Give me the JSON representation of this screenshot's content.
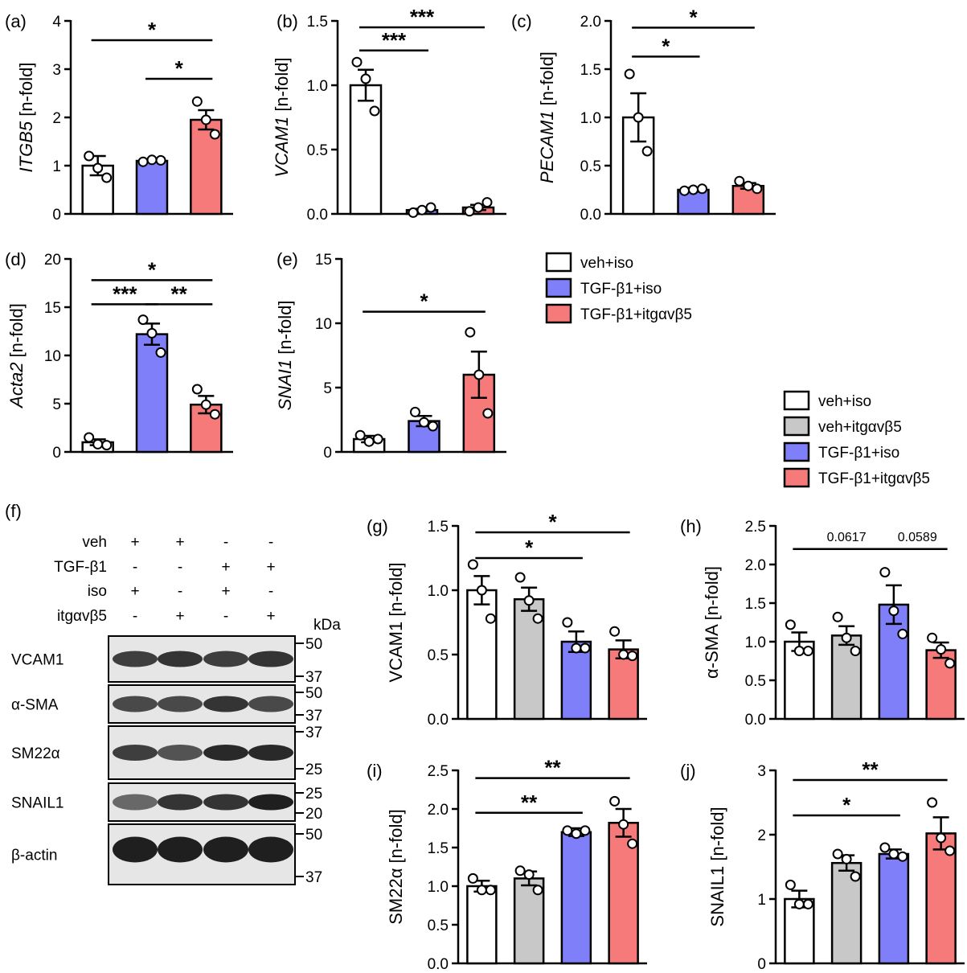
{
  "colors": {
    "veh_iso": "#ffffff",
    "veh_itg": "#c8c8c8",
    "tgf_iso": "#7f7ff9",
    "tgf_itg": "#f77a7a"
  },
  "legend_top": {
    "entries": [
      {
        "label": "veh+iso",
        "color": "#ffffff"
      },
      {
        "label": "TGF-β1+iso",
        "color": "#7f7ff9"
      },
      {
        "label": "TGF-β1+itgαvβ5",
        "color": "#f77a7a"
      }
    ]
  },
  "legend_bottom": {
    "entries": [
      {
        "label": "veh+iso",
        "color": "#ffffff"
      },
      {
        "label": "veh+itgαvβ5",
        "color": "#c8c8c8"
      },
      {
        "label": "TGF-β1+iso",
        "color": "#7f7ff9"
      },
      {
        "label": "TGF-β1+itgαvβ5",
        "color": "#f77a7a"
      }
    ]
  },
  "blot": {
    "panel_label": "(f)",
    "treatments": [
      {
        "name": "veh",
        "marks": [
          "+",
          "+",
          "-",
          "-"
        ]
      },
      {
        "name": "TGF-β1",
        "marks": [
          "-",
          "-",
          "+",
          "+"
        ]
      },
      {
        "name": "iso",
        "marks": [
          "+",
          "-",
          "+",
          "-"
        ]
      },
      {
        "name": "itgαvβ5",
        "marks": [
          "-",
          "+",
          "-",
          "+"
        ]
      }
    ],
    "kda_label": "kDa",
    "proteins": [
      {
        "name": "VCAM1",
        "markers": [
          "50",
          "37"
        ]
      },
      {
        "name": "α-SMA",
        "markers": [
          "50",
          "37"
        ]
      },
      {
        "name": "SM22α",
        "markers": [
          "37",
          "25"
        ]
      },
      {
        "name": "SNAIL1",
        "markers": [
          "25",
          "20"
        ]
      },
      {
        "name": "β-actin",
        "markers": [
          "50",
          "37"
        ]
      }
    ],
    "band_intensity": [
      [
        0.8,
        0.85,
        0.8,
        0.85
      ],
      [
        0.75,
        0.75,
        0.85,
        0.75
      ],
      [
        0.8,
        0.7,
        0.9,
        0.9
      ],
      [
        0.6,
        0.85,
        0.85,
        0.95
      ],
      [
        0.95,
        0.95,
        0.95,
        0.95
      ]
    ]
  },
  "chart_data": [
    {
      "panel": "(a)",
      "type": "bar",
      "ylabel": "ITGB5 [n-fold]",
      "ylabel_italic_part": "ITGB5",
      "ylim": [
        0,
        4
      ],
      "yticks": [
        "0",
        "1",
        "2",
        "3",
        "4"
      ],
      "series": [
        {
          "name": "veh+iso",
          "value": 1.0,
          "sem": 0.2,
          "points": [
            1.2,
            0.95,
            0.75
          ]
        },
        {
          "name": "TGF-β1+iso",
          "value": 1.1,
          "sem": 0.03,
          "points": [
            1.08,
            1.12,
            1.11
          ]
        },
        {
          "name": "TGF-β1+itgαvβ5",
          "value": 1.95,
          "sem": 0.2,
          "points": [
            2.33,
            1.95,
            1.65
          ]
        }
      ],
      "significance": [
        {
          "from": 0,
          "to": 2,
          "y": 3.6,
          "label": "*"
        },
        {
          "from": 1,
          "to": 2,
          "y": 2.8,
          "label": "*"
        }
      ]
    },
    {
      "panel": "(b)",
      "type": "bar",
      "ylabel": "VCAM1 [n-fold]",
      "ylabel_italic_part": "VCAM1",
      "ylim": [
        0,
        1.5
      ],
      "yticks": [
        "0.0",
        "0.5",
        "1.0",
        "1.5"
      ],
      "series": [
        {
          "name": "veh+iso",
          "value": 1.0,
          "sem": 0.12,
          "points": [
            1.18,
            1.05,
            0.8
          ]
        },
        {
          "name": "TGF-β1+iso",
          "value": 0.03,
          "sem": 0.01,
          "points": [
            0.01,
            0.03,
            0.05
          ]
        },
        {
          "name": "TGF-β1+itgαvβ5",
          "value": 0.05,
          "sem": 0.02,
          "points": [
            0.02,
            0.05,
            0.09
          ]
        }
      ],
      "significance": [
        {
          "from": 0,
          "to": 2,
          "y": 1.45,
          "label": "***"
        },
        {
          "from": 0,
          "to": 1,
          "y": 1.27,
          "label": "***"
        }
      ]
    },
    {
      "panel": "(c)",
      "type": "bar",
      "ylabel": "PECAM1 [n-fold]",
      "ylabel_italic_part": "PECAM1",
      "ylim": [
        0,
        2.0
      ],
      "yticks": [
        "0.0",
        "0.5",
        "1.0",
        "1.5",
        "2.0"
      ],
      "series": [
        {
          "name": "veh+iso",
          "value": 1.0,
          "sem": 0.25,
          "points": [
            1.45,
            1.0,
            0.65
          ]
        },
        {
          "name": "TGF-β1+iso",
          "value": 0.25,
          "sem": 0.02,
          "points": [
            0.24,
            0.25,
            0.26
          ]
        },
        {
          "name": "TGF-β1+itgαvβ5",
          "value": 0.29,
          "sem": 0.03,
          "points": [
            0.34,
            0.29,
            0.26
          ]
        }
      ],
      "significance": [
        {
          "from": 0,
          "to": 2,
          "y": 1.93,
          "label": "*"
        },
        {
          "from": 0,
          "to": 1,
          "y": 1.63,
          "label": "*"
        }
      ]
    },
    {
      "panel": "(d)",
      "type": "bar",
      "ylabel": "Acta2 [n-fold]",
      "ylabel_italic_part": "Acta2",
      "ylim": [
        0,
        20
      ],
      "yticks": [
        "0",
        "5",
        "10",
        "15",
        "20"
      ],
      "series": [
        {
          "name": "veh+iso",
          "value": 1.0,
          "sem": 0.3,
          "points": [
            1.5,
            0.8,
            0.7
          ]
        },
        {
          "name": "TGF-β1+iso",
          "value": 12.2,
          "sem": 1.1,
          "points": [
            13.7,
            12.3,
            10.3
          ]
        },
        {
          "name": "TGF-β1+itgαvβ5",
          "value": 4.9,
          "sem": 0.9,
          "points": [
            6.5,
            4.9,
            3.9
          ]
        }
      ],
      "significance": [
        {
          "from": 0,
          "to": 2,
          "y": 17.8,
          "label": "*"
        },
        {
          "from": 0,
          "to": 1,
          "y": 15.3,
          "label": "***"
        },
        {
          "from": 1,
          "to": 2,
          "y": 15.3,
          "label": "**"
        }
      ]
    },
    {
      "panel": "(e)",
      "type": "bar",
      "ylabel": "SNAI1 [n-fold]",
      "ylabel_italic_part": "SNAI1",
      "ylim": [
        0,
        15
      ],
      "yticks": [
        "0",
        "5",
        "10",
        "15"
      ],
      "series": [
        {
          "name": "veh+iso",
          "value": 1.0,
          "sem": 0.25,
          "points": [
            1.3,
            0.8,
            1.0
          ]
        },
        {
          "name": "TGF-β1+iso",
          "value": 2.4,
          "sem": 0.4,
          "points": [
            3.1,
            2.3,
            2.0
          ]
        },
        {
          "name": "TGF-β1+itgαvβ5",
          "value": 6.0,
          "sem": 1.8,
          "points": [
            9.3,
            6.0,
            3.0
          ]
        }
      ],
      "significance": [
        {
          "from": 0,
          "to": 2,
          "y": 10.9,
          "label": "*"
        }
      ]
    },
    {
      "panel": "(g)",
      "type": "bar",
      "ylabel": "VCAM1 [n-fold]",
      "ylim": [
        0,
        1.5
      ],
      "yticks": [
        "0.0",
        "0.5",
        "1.0",
        "1.5"
      ],
      "series": [
        {
          "name": "veh+iso",
          "value": 1.0,
          "sem": 0.11,
          "points": [
            1.2,
            1.0,
            0.78
          ]
        },
        {
          "name": "veh+itgαvβ5",
          "value": 0.93,
          "sem": 0.09,
          "points": [
            1.1,
            0.92,
            0.78
          ]
        },
        {
          "name": "TGF-β1+iso",
          "value": 0.6,
          "sem": 0.08,
          "points": [
            0.75,
            0.55,
            0.55
          ]
        },
        {
          "name": "TGF-β1+itgαvβ5",
          "value": 0.54,
          "sem": 0.07,
          "points": [
            0.68,
            0.5,
            0.49
          ]
        }
      ],
      "significance": [
        {
          "from": 0,
          "to": 3,
          "y": 1.45,
          "label": "*"
        },
        {
          "from": 0,
          "to": 2,
          "y": 1.25,
          "label": "*"
        }
      ]
    },
    {
      "panel": "(h)",
      "type": "bar",
      "ylabel": "α-SMA [n-fold]",
      "ylim": [
        0,
        2.5
      ],
      "yticks": [
        "0.0",
        "0.5",
        "1.0",
        "1.5",
        "2.0",
        "2.5"
      ],
      "series": [
        {
          "name": "veh+iso",
          "value": 1.0,
          "sem": 0.12,
          "points": [
            1.22,
            0.88,
            0.88
          ]
        },
        {
          "name": "veh+itgαvβ5",
          "value": 1.08,
          "sem": 0.12,
          "points": [
            1.32,
            1.05,
            0.88
          ]
        },
        {
          "name": "TGF-β1+iso",
          "value": 1.48,
          "sem": 0.25,
          "points": [
            1.9,
            1.4,
            1.1
          ]
        },
        {
          "name": "TGF-β1+itgαvβ5",
          "value": 0.89,
          "sem": 0.1,
          "points": [
            1.05,
            0.9,
            0.72
          ]
        }
      ],
      "significance": [
        {
          "from": 0,
          "to": 2,
          "y": 2.2,
          "label": "0.0617",
          "small": true
        },
        {
          "from": 2,
          "to": 3,
          "y": 2.2,
          "label": "0.0589",
          "small": true
        }
      ]
    },
    {
      "panel": "(i)",
      "type": "bar",
      "ylabel": "SM22α [n-fold]",
      "ylim": [
        0,
        2.5
      ],
      "yticks": [
        "0.0",
        "0.5",
        "1.0",
        "1.5",
        "2.0",
        "2.5"
      ],
      "series": [
        {
          "name": "veh+iso",
          "value": 1.0,
          "sem": 0.07,
          "points": [
            1.1,
            0.95,
            0.95
          ]
        },
        {
          "name": "veh+itgαvβ5",
          "value": 1.1,
          "sem": 0.09,
          "points": [
            1.2,
            1.15,
            0.95
          ]
        },
        {
          "name": "TGF-β1+iso",
          "value": 1.7,
          "sem": 0.05,
          "points": [
            1.72,
            1.68,
            1.72
          ]
        },
        {
          "name": "TGF-β1+itgαvβ5",
          "value": 1.82,
          "sem": 0.18,
          "points": [
            2.1,
            1.8,
            1.55
          ]
        }
      ],
      "significance": [
        {
          "from": 0,
          "to": 3,
          "y": 2.4,
          "label": "**"
        },
        {
          "from": 0,
          "to": 2,
          "y": 1.95,
          "label": "**"
        }
      ]
    },
    {
      "panel": "(j)",
      "type": "bar",
      "ylabel": "SNAIL1 [n-fold]",
      "ylim": [
        0,
        3
      ],
      "yticks": [
        "0",
        "1",
        "2",
        "3"
      ],
      "series": [
        {
          "name": "veh+iso",
          "value": 1.0,
          "sem": 0.13,
          "points": [
            1.22,
            0.92,
            0.92
          ]
        },
        {
          "name": "veh+itgαvβ5",
          "value": 1.56,
          "sem": 0.12,
          "points": [
            1.7,
            1.62,
            1.35
          ]
        },
        {
          "name": "TGF-β1+iso",
          "value": 1.7,
          "sem": 0.07,
          "points": [
            1.8,
            1.7,
            1.66
          ]
        },
        {
          "name": "TGF-β1+itgαvβ5",
          "value": 2.02,
          "sem": 0.25,
          "points": [
            2.5,
            1.95,
            1.75
          ]
        }
      ],
      "significance": [
        {
          "from": 0,
          "to": 3,
          "y": 2.85,
          "label": "**"
        },
        {
          "from": 0,
          "to": 2,
          "y": 2.3,
          "label": "*"
        }
      ]
    }
  ]
}
